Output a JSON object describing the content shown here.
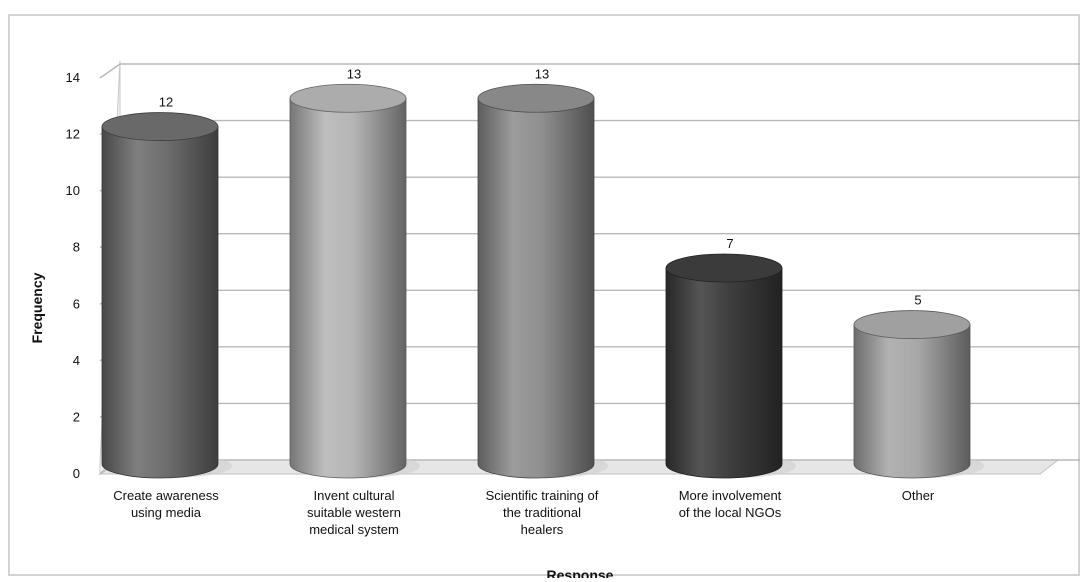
{
  "chart_data": {
    "type": "bar",
    "style": "3d-cylinder",
    "title": "",
    "xlabel": "Response",
    "ylabel": "Frequency",
    "ylim": [
      0,
      14
    ],
    "yticks": [
      0,
      2,
      4,
      6,
      8,
      10,
      12,
      14
    ],
    "grid": true,
    "legend": "none",
    "categories": [
      [
        "Create awareness",
        "using media"
      ],
      [
        "Invent cultural",
        "suitable western",
        "medical system"
      ],
      [
        "Scientific training of",
        "the traditional",
        "healers"
      ],
      [
        "More involvement",
        "of the local NGOs"
      ],
      [
        "Other"
      ]
    ],
    "values": [
      12,
      13,
      13,
      7,
      5
    ],
    "data_labels": [
      "12",
      "13",
      "13",
      "7",
      "5"
    ],
    "bar_colors": [
      "#6e6e6e",
      "#b5b5b5",
      "#8f8f8f",
      "#3e3e3e",
      "#a8a8a8"
    ]
  }
}
